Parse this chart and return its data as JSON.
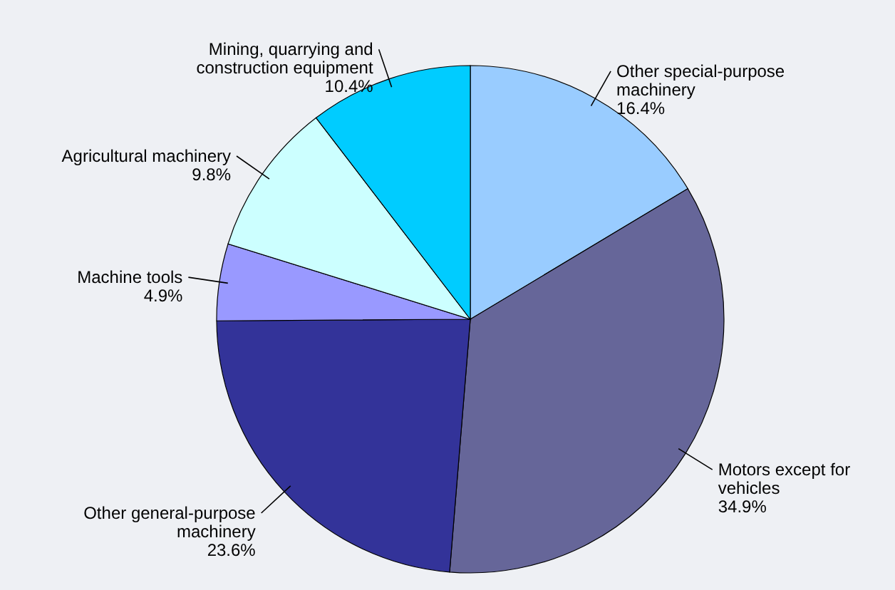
{
  "chart_data": {
    "type": "pie",
    "categories": [
      "Other special-purpose machinery",
      "Motors except for vehicles",
      "Other general-purpose machinery",
      "Machine tools",
      "Agricultural machinery",
      "Mining, quarrying and construction equipment"
    ],
    "values": [
      16.4,
      34.9,
      23.6,
      4.9,
      9.8,
      10.4
    ],
    "colors": [
      "#99ccff",
      "#666699",
      "#333399",
      "#9999ff",
      "#ccffff",
      "#00ccff"
    ],
    "value_labels": [
      "16.4%",
      "34.9%",
      "23.6%",
      "4.9%",
      "9.8%",
      "10.4%"
    ]
  }
}
